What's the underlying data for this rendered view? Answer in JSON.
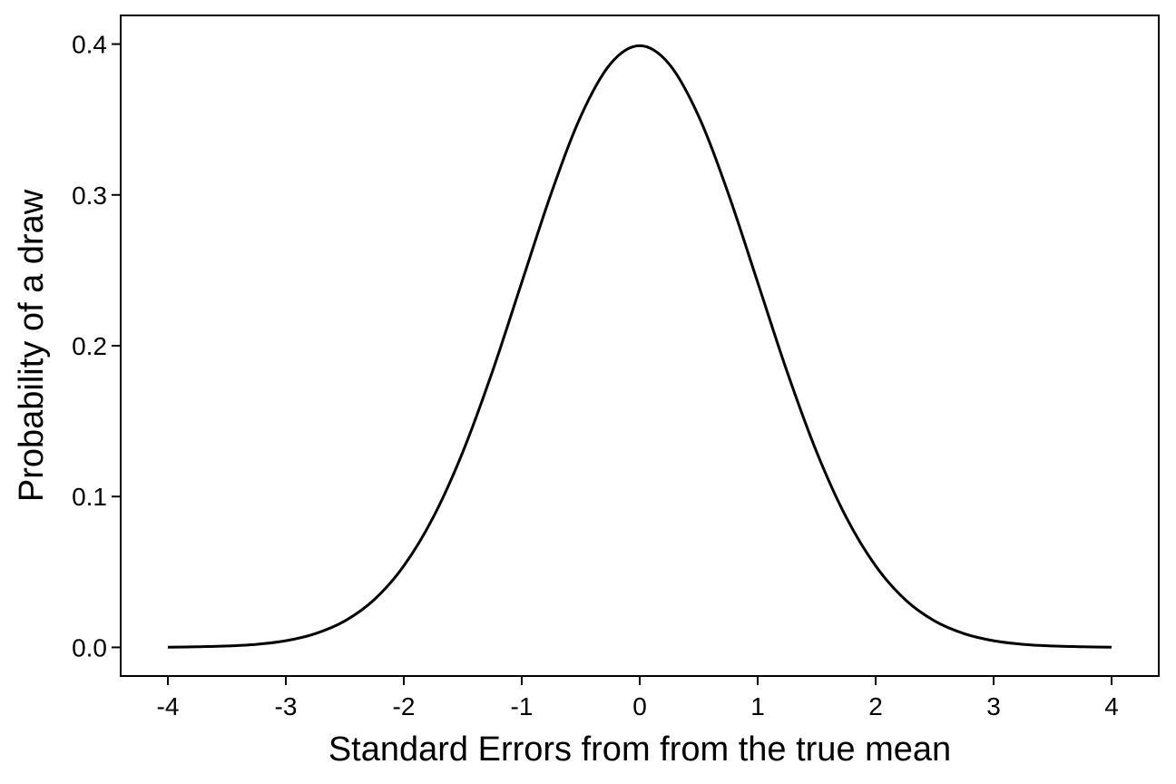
{
  "chart_data": {
    "type": "line",
    "title": "",
    "xlabel": "Standard Errors from from the true mean",
    "ylabel": "Probability of a draw",
    "xlim": [
      -4.4,
      4.4
    ],
    "ylim": [
      -0.019,
      0.419
    ],
    "x_ticks": [
      -4,
      -3,
      -2,
      -1,
      0,
      1,
      2,
      3,
      4
    ],
    "x_tick_labels": [
      "-4",
      "-3",
      "-2",
      "-1",
      "0",
      "1",
      "2",
      "3",
      "4"
    ],
    "y_ticks": [
      0.0,
      0.1,
      0.2,
      0.3,
      0.4
    ],
    "y_tick_labels": [
      "0.0",
      "0.1",
      "0.2",
      "0.3",
      "0.4"
    ],
    "grid": false,
    "line_color": "#000000",
    "series": [
      {
        "x": [
          -4.0,
          -3.75,
          -3.5,
          -3.25,
          -3.0,
          -2.75,
          -2.5,
          -2.25,
          -2.0,
          -1.75,
          -1.5,
          -1.25,
          -1.0,
          -0.75,
          -0.5,
          -0.25,
          0.0,
          0.25,
          0.5,
          0.75,
          1.0,
          1.25,
          1.5,
          1.75,
          2.0,
          2.25,
          2.5,
          2.75,
          3.0,
          3.25,
          3.5,
          3.75,
          4.0
        ],
        "y": [
          0.0001,
          0.0004,
          0.0009,
          0.002,
          0.0044,
          0.0091,
          0.0175,
          0.0317,
          0.054,
          0.0863,
          0.1295,
          0.1826,
          0.242,
          0.3011,
          0.3521,
          0.3867,
          0.3989,
          0.3867,
          0.3521,
          0.3011,
          0.242,
          0.1826,
          0.1295,
          0.0863,
          0.054,
          0.0317,
          0.0175,
          0.0091,
          0.0044,
          0.002,
          0.0009,
          0.0004,
          0.0001
        ]
      }
    ]
  }
}
